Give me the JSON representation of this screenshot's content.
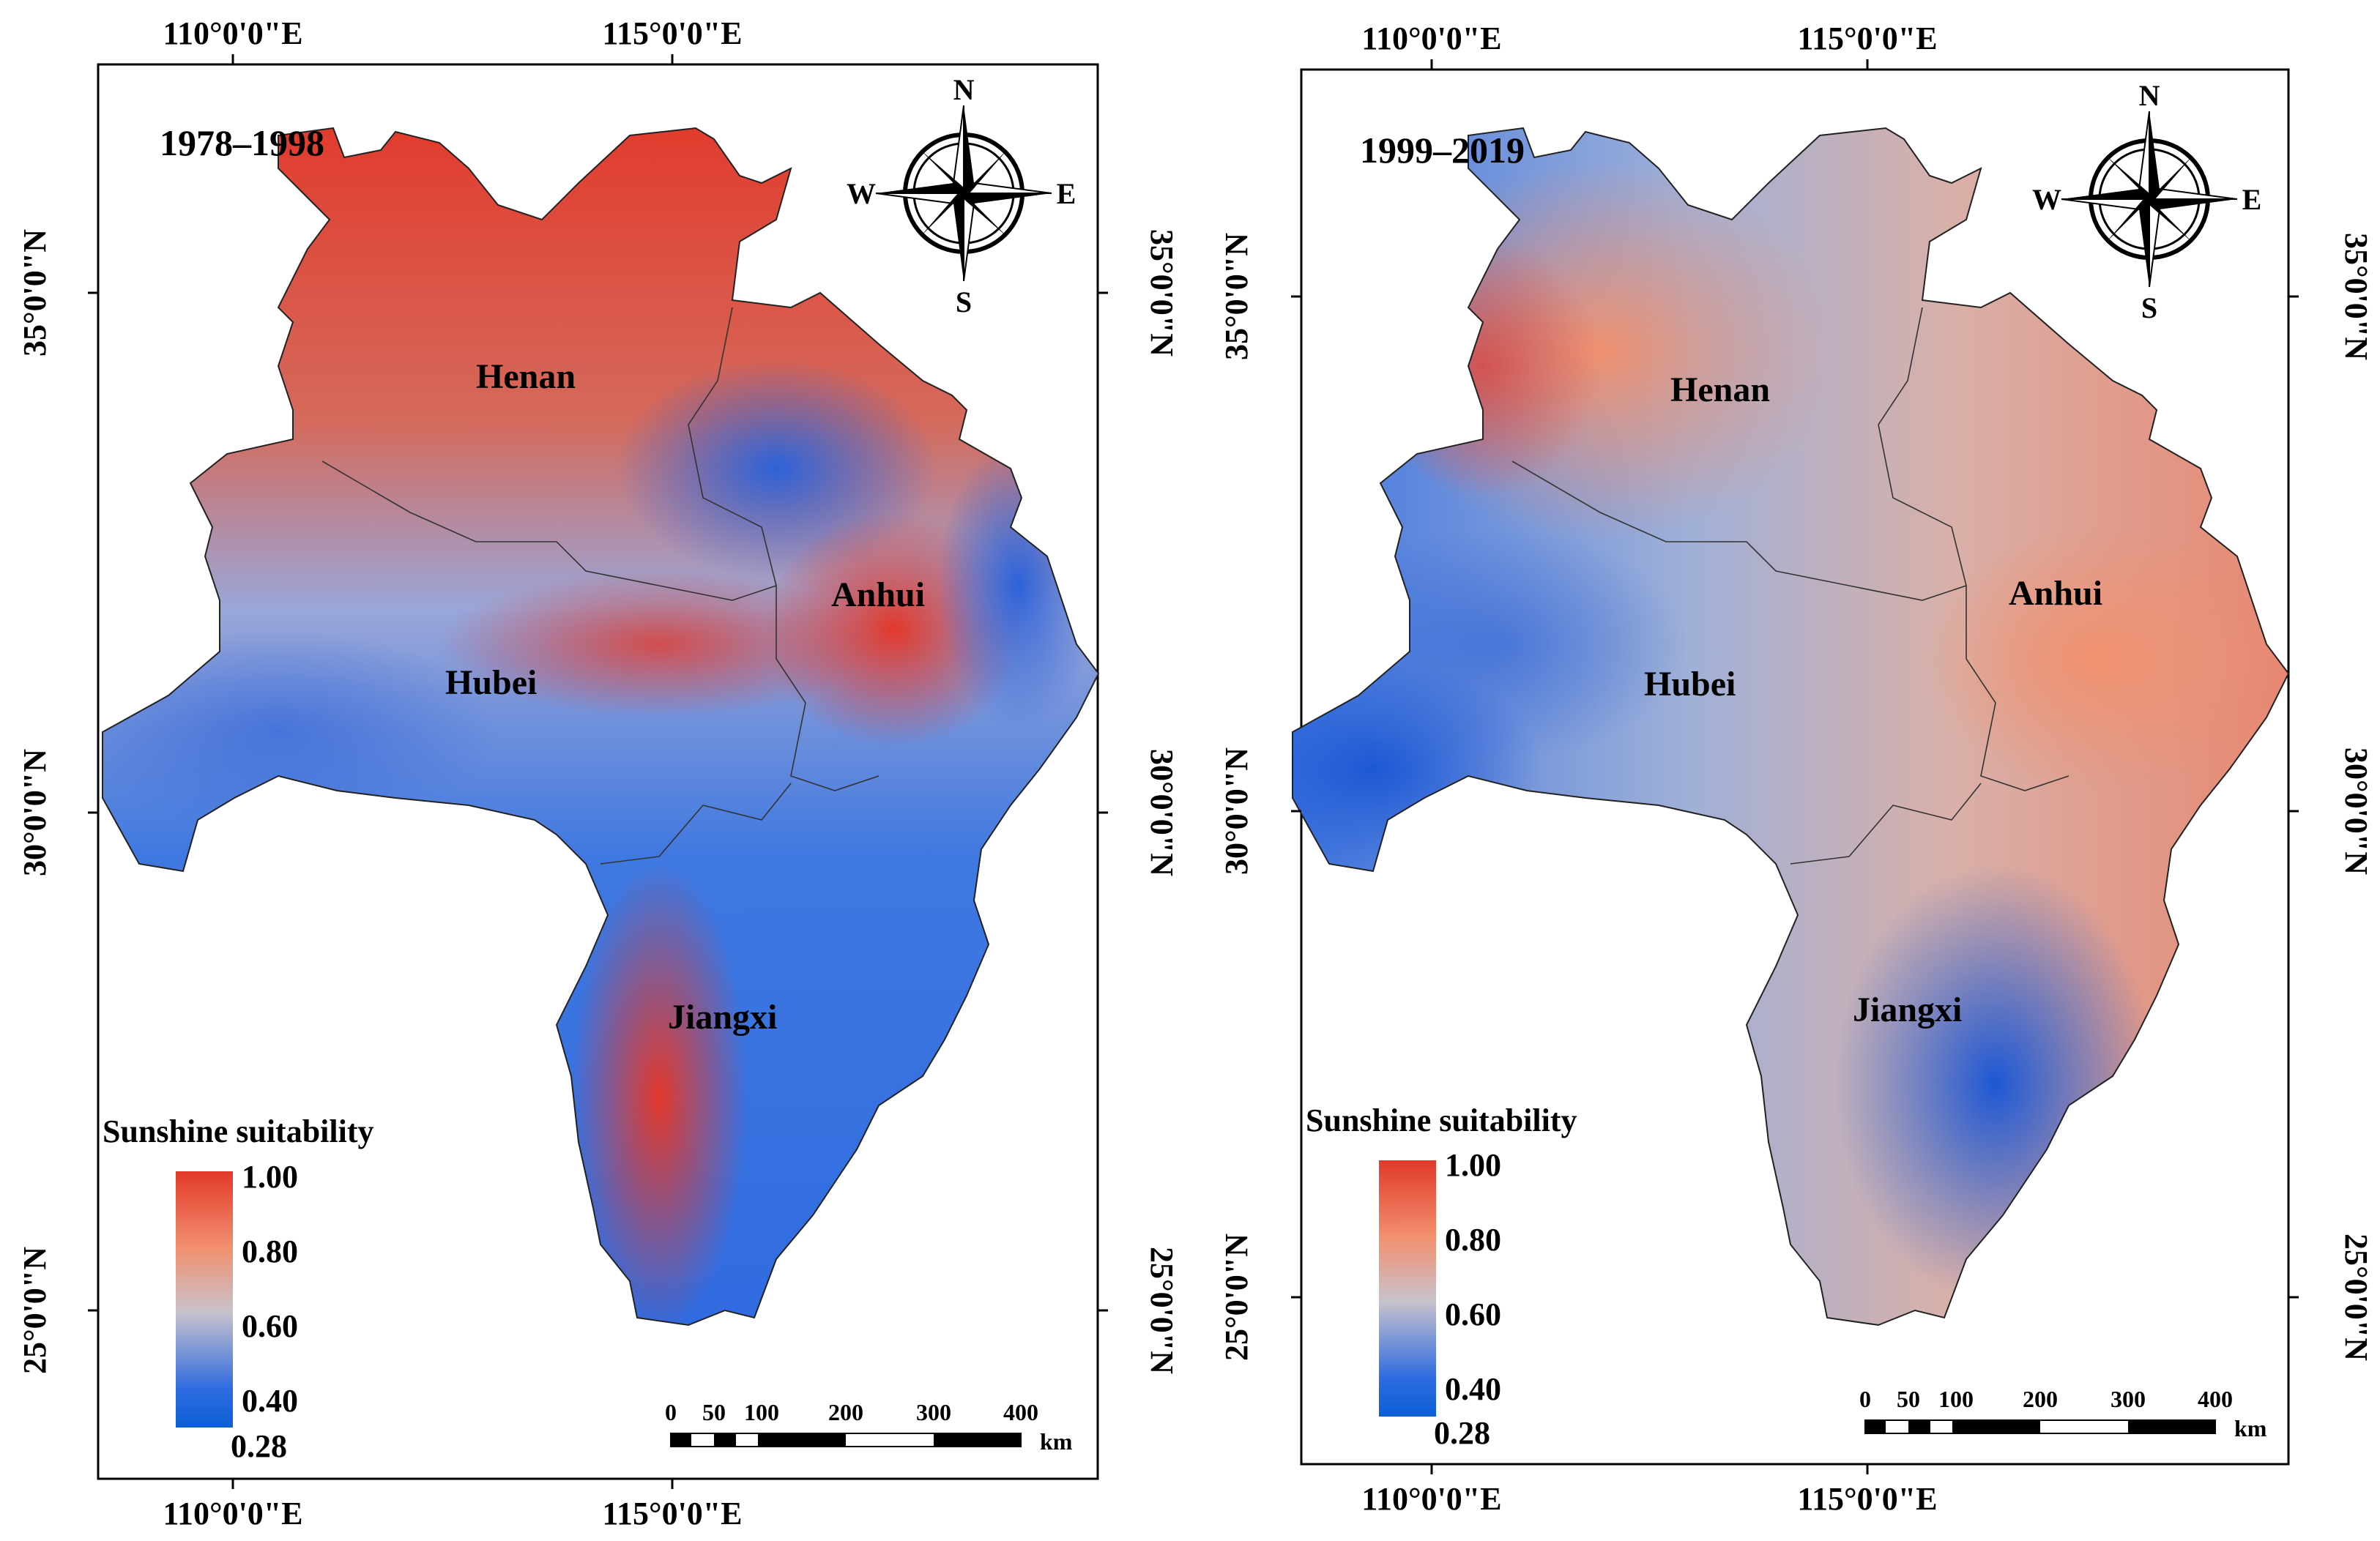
{
  "colors": {
    "high": "#e2392b",
    "mid_high": "#f2906e",
    "mid": "#c8c2cc",
    "low": "#2f6be0",
    "lowest": "#0a5fd6",
    "frame": "#000000"
  },
  "axes": {
    "top_lon": [
      "110°0'0\"E",
      "115°0'0\"E"
    ],
    "bottom_lon": [
      "110°0'0\"E",
      "115°0'0\"E"
    ],
    "left_lat": [
      "35°0'0\"N",
      "30°0'0\"N",
      "25°0'0\"N"
    ],
    "right_lat": [
      "35°0'0\"N",
      "30°0'0\"N",
      "25°0'0\"N"
    ]
  },
  "maps": [
    {
      "period": "1978–1998",
      "provinces": [
        "Henan",
        "Anhui",
        "Hubei",
        "Jiangxi"
      ],
      "legend": {
        "title": "Sunshine suitability",
        "ticks": [
          "1.00",
          "0.80",
          "0.60",
          "0.40",
          "0.28"
        ]
      },
      "compass": {
        "n": "N",
        "s": "S",
        "e": "E",
        "w": "W",
        "icon": "compass-rose-icon"
      },
      "scalebar": {
        "ticks": [
          "0",
          "50",
          "100",
          "200",
          "300",
          "400"
        ],
        "unit": "km"
      }
    },
    {
      "period": "1999–2019",
      "provinces": [
        "Henan",
        "Anhui",
        "Hubei",
        "Jiangxi"
      ],
      "legend": {
        "title": "Sunshine suitability",
        "ticks": [
          "1.00",
          "0.80",
          "0.60",
          "0.40",
          "0.28"
        ]
      },
      "compass": {
        "n": "N",
        "s": "S",
        "e": "E",
        "w": "W",
        "icon": "compass-rose-icon"
      },
      "scalebar": {
        "ticks": [
          "0",
          "50",
          "100",
          "200",
          "300",
          "400"
        ],
        "unit": "km"
      }
    }
  ]
}
